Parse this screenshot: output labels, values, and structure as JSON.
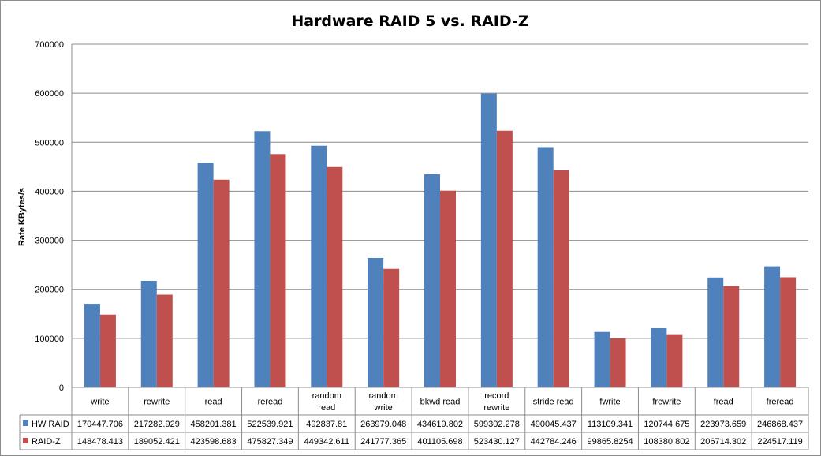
{
  "chart_data": {
    "type": "bar",
    "title": "Hardware RAID 5 vs. RAID-Z",
    "xlabel": "",
    "ylabel": "Rate KBytes/s",
    "ylim": [
      0,
      700000
    ],
    "yticks": [
      0,
      100000,
      200000,
      300000,
      400000,
      500000,
      600000,
      700000
    ],
    "grid": true,
    "legend": "data-table",
    "categories": [
      [
        "write"
      ],
      [
        "rewrite"
      ],
      [
        "read"
      ],
      [
        "reread"
      ],
      [
        "random",
        "read"
      ],
      [
        "random",
        "write"
      ],
      [
        "bkwd read"
      ],
      [
        "record",
        "rewrite"
      ],
      [
        "stride read"
      ],
      [
        "fwrite"
      ],
      [
        "frewrite"
      ],
      [
        "fread"
      ],
      [
        "freread"
      ]
    ],
    "series": [
      {
        "name": "HW RAID",
        "color": "#4f81bd",
        "values": [
          170447.706,
          217282.929,
          458201.381,
          522539.921,
          492837.81,
          263979.048,
          434619.802,
          599302.278,
          490045.437,
          113109.341,
          120744.675,
          223973.659,
          246868.437
        ],
        "labels": [
          "170447.706",
          "217282.929",
          "458201.381",
          "522539.921",
          "492837.81",
          "263979.048",
          "434619.802",
          "599302.278",
          "490045.437",
          "113109.341",
          "120744.675",
          "223973.659",
          "246868.437"
        ]
      },
      {
        "name": "RAID-Z",
        "color": "#c0504d",
        "values": [
          148478.413,
          189052.421,
          423598.683,
          475827.349,
          449342.611,
          241777.365,
          401105.698,
          523430.127,
          442784.246,
          99865.8254,
          108380.802,
          206714.302,
          224517.119
        ],
        "labels": [
          "148478.413",
          "189052.421",
          "423598.683",
          "475827.349",
          "449342.611",
          "241777.365",
          "401105.698",
          "523430.127",
          "442784.246",
          "99865.8254",
          "108380.802",
          "206714.302",
          "224517.119"
        ]
      }
    ]
  }
}
